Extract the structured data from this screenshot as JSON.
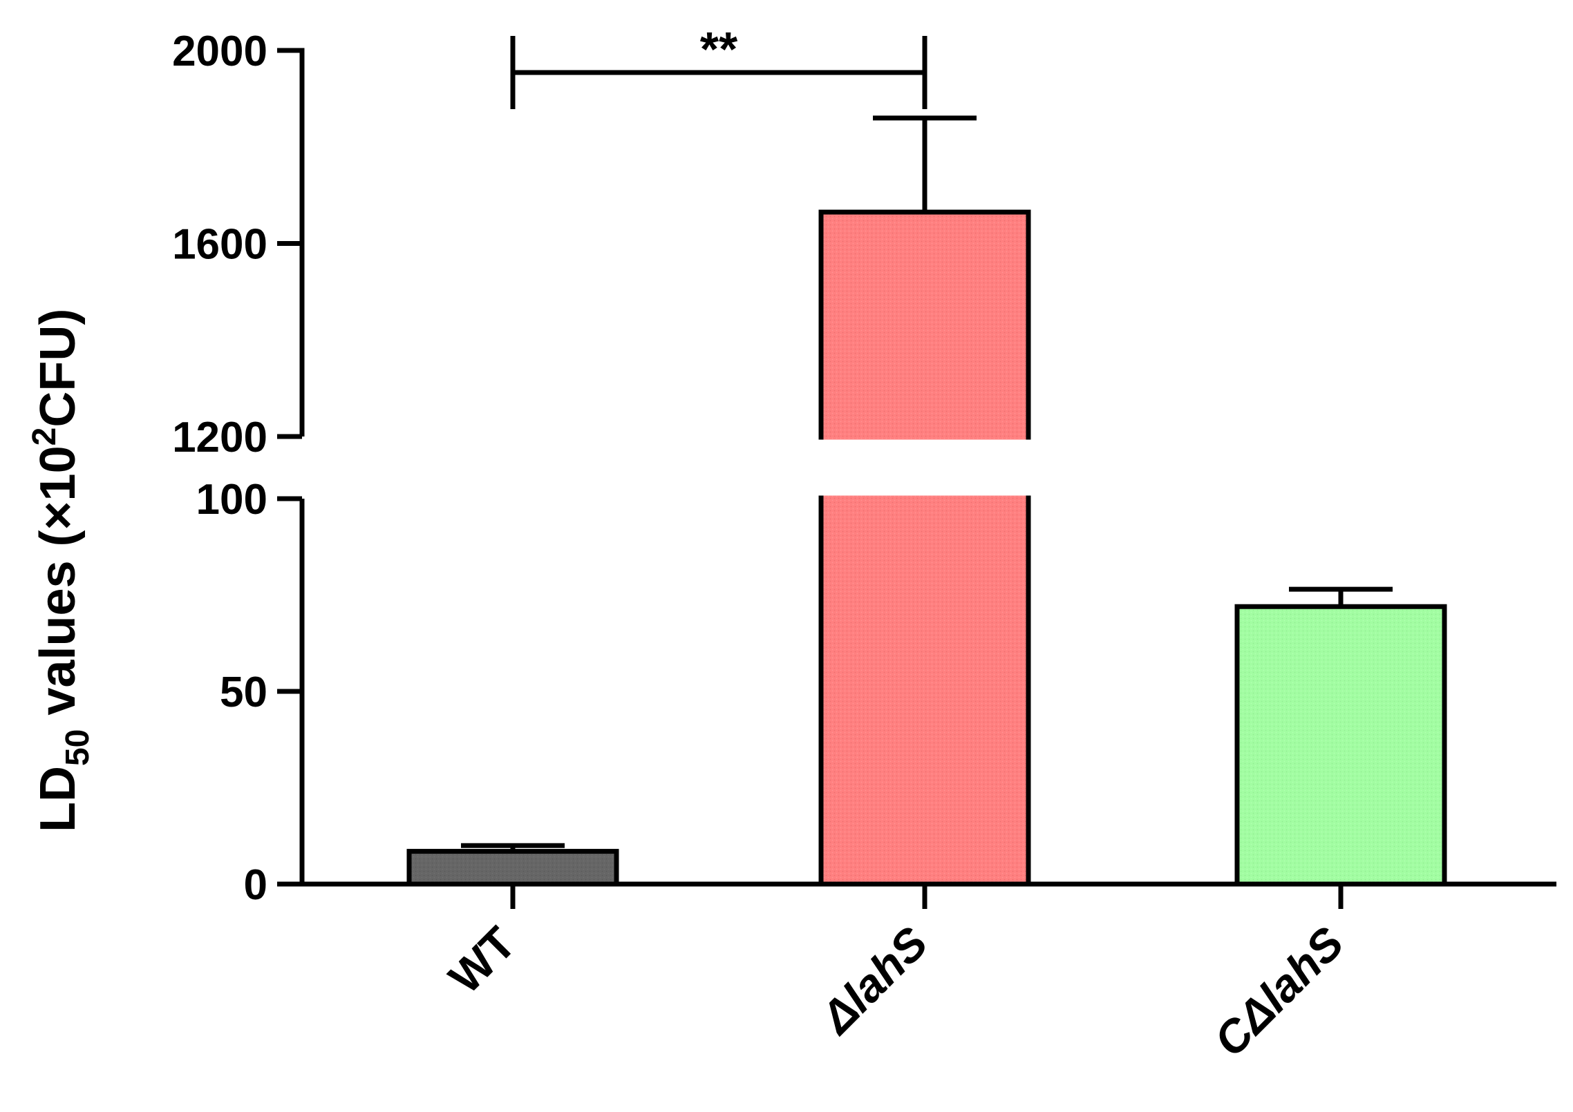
{
  "chart_data": {
    "type": "bar",
    "categories": [
      "WT",
      "ΔlahS",
      "CΔlahS"
    ],
    "values": [
      8.5,
      1665,
      72
    ],
    "errors": [
      1.5,
      195,
      4.5
    ],
    "colors": [
      "#666666",
      "#ff8080",
      "#a2fda2"
    ],
    "ylabel": {
      "main": "LD",
      "sub": "50",
      "mid": " values (×10",
      "sup": "2",
      "end": "CFU)"
    },
    "axis_break": {
      "lower_range": [
        0,
        100
      ],
      "upper_range": [
        1200,
        2000
      ]
    },
    "yticks_lower": [
      "0",
      "50",
      "100"
    ],
    "yticks_upper": [
      "1200",
      "1600",
      "2000"
    ],
    "significance": {
      "from_category": 0,
      "to_category": 1,
      "label": "**"
    }
  }
}
